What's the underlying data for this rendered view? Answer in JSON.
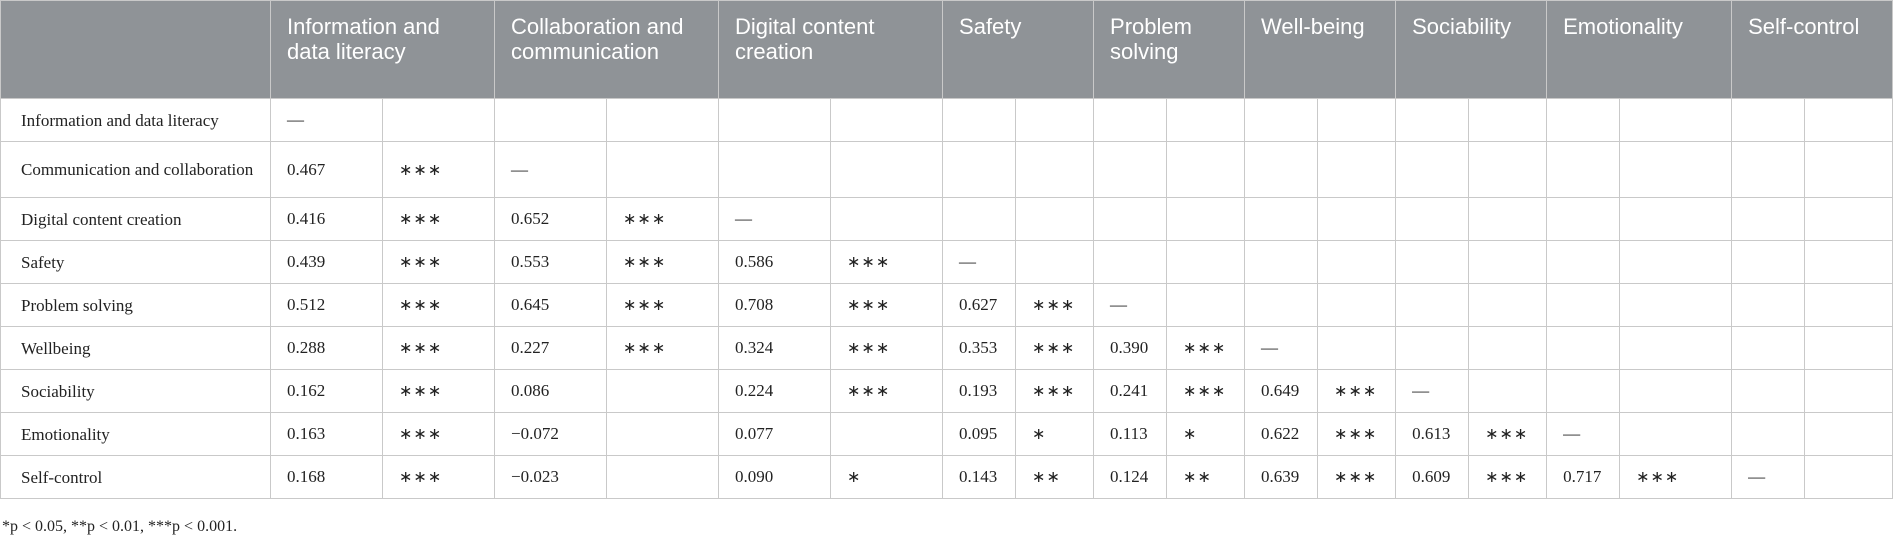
{
  "table": {
    "columns": [
      "Information and data literacy",
      "Collaboration and communication",
      "Digital content creation",
      "Safety",
      "Problem solving",
      "Well-being",
      "Sociability",
      "Emotionality",
      "Self-control"
    ],
    "rows": [
      {
        "label": "Information and data literacy",
        "cells": [
          "—",
          "",
          "",
          "",
          "",
          "",
          "",
          "",
          "",
          "",
          "",
          "",
          "",
          "",
          "",
          "",
          "",
          ""
        ]
      },
      {
        "label": "Communication and collaboration",
        "cells": [
          "0.467",
          "∗∗∗",
          "—",
          "",
          "",
          "",
          "",
          "",
          "",
          "",
          "",
          "",
          "",
          "",
          "",
          "",
          "",
          ""
        ]
      },
      {
        "label": "Digital content creation",
        "cells": [
          "0.416",
          "∗∗∗",
          "0.652",
          "∗∗∗",
          "—",
          "",
          "",
          "",
          "",
          "",
          "",
          "",
          "",
          "",
          "",
          "",
          "",
          ""
        ]
      },
      {
        "label": "Safety",
        "cells": [
          "0.439",
          "∗∗∗",
          "0.553",
          "∗∗∗",
          "0.586",
          "∗∗∗",
          "—",
          "",
          "",
          "",
          "",
          "",
          "",
          "",
          "",
          "",
          "",
          ""
        ]
      },
      {
        "label": "Problem solving",
        "cells": [
          "0.512",
          "∗∗∗",
          "0.645",
          "∗∗∗",
          "0.708",
          "∗∗∗",
          "0.627",
          "∗∗∗",
          "—",
          "",
          "",
          "",
          "",
          "",
          "",
          "",
          "",
          ""
        ]
      },
      {
        "label": "Wellbeing",
        "cells": [
          "0.288",
          "∗∗∗",
          "0.227",
          "∗∗∗",
          "0.324",
          "∗∗∗",
          "0.353",
          "∗∗∗",
          "0.390",
          "∗∗∗",
          "—",
          "",
          "",
          "",
          "",
          "",
          "",
          ""
        ]
      },
      {
        "label": "Sociability",
        "cells": [
          "0.162",
          "∗∗∗",
          "0.086",
          "",
          "0.224",
          "∗∗∗",
          "0.193",
          "∗∗∗",
          "0.241",
          "∗∗∗",
          "0.649",
          "∗∗∗",
          "—",
          "",
          "",
          "",
          "",
          ""
        ]
      },
      {
        "label": "Emotionality",
        "cells": [
          "0.163",
          "∗∗∗",
          "−0.072",
          "",
          "0.077",
          "",
          "0.095",
          "∗",
          "0.113",
          "∗",
          "0.622",
          "∗∗∗",
          "0.613",
          "∗∗∗",
          "—",
          "",
          "",
          ""
        ]
      },
      {
        "label": "Self-control",
        "cells": [
          "0.168",
          "∗∗∗",
          "−0.023",
          "",
          "0.090",
          "∗",
          "0.143",
          "∗∗",
          "0.124",
          "∗∗",
          "0.639",
          "∗∗∗",
          "0.609",
          "∗∗∗",
          "0.717",
          "∗∗∗",
          "—",
          ""
        ]
      }
    ]
  },
  "footnote": "*p < 0.05, **p < 0.01, ***p < 0.001."
}
